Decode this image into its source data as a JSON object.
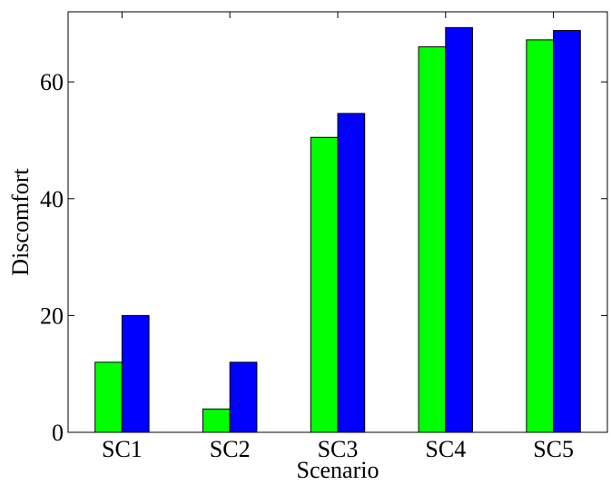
{
  "chart_data": {
    "type": "bar",
    "xlabel": "Scenario",
    "ylabel": "Discomfort",
    "categories": [
      "SC1",
      "SC2",
      "SC3",
      "SC4",
      "SC5"
    ],
    "series": [
      {
        "values": [
          12,
          4,
          50.5,
          66,
          67.2
        ],
        "color": "#00ff00"
      },
      {
        "values": [
          20,
          12,
          54.6,
          69.3,
          68.8
        ],
        "color": "#0000ff"
      }
    ],
    "ylim": [
      0,
      72
    ],
    "yticks": [
      0,
      20,
      40,
      60
    ],
    "ytick_labels": [
      "0",
      "20",
      "40",
      "60"
    ],
    "grid": false,
    "legend": "none"
  }
}
